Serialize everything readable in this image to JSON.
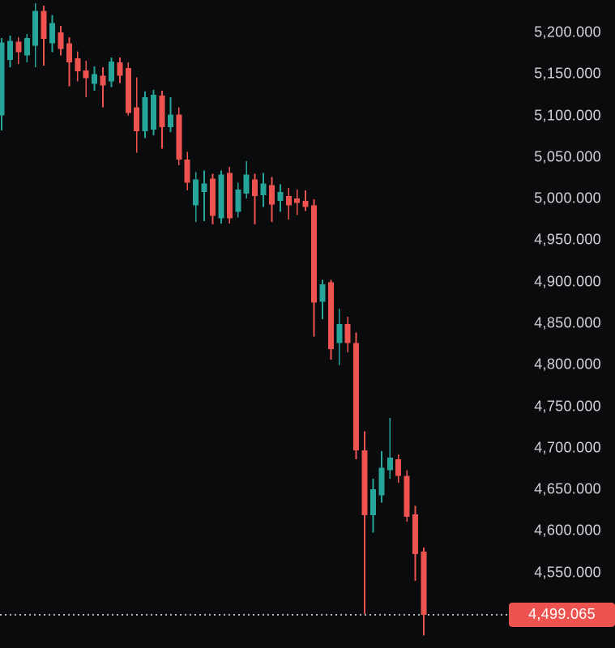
{
  "colors": {
    "background": "#0a0b0d",
    "up": "#26a69a",
    "down": "#ef5350",
    "axis_text": "#d2d4d9",
    "dotted_line": "#b8bac1",
    "price_label_bg": "#ef5350",
    "price_label_text": "#ffffff"
  },
  "chart_data": {
    "type": "candlestick",
    "title": "",
    "legend": "none",
    "grid": "off",
    "price_axis": {
      "side": "right",
      "ylim": [
        4459,
        5239
      ],
      "labels": [
        {
          "text": "5,200.000",
          "price": 5200
        },
        {
          "text": "5,150.000",
          "price": 5150
        },
        {
          "text": "5,100.000",
          "price": 5100
        },
        {
          "text": "5,050.000",
          "price": 5050
        },
        {
          "text": "5,000.000",
          "price": 5000
        },
        {
          "text": "4,950.000",
          "price": 4950
        },
        {
          "text": "4,900.000",
          "price": 4900
        },
        {
          "text": "4,850.000",
          "price": 4850
        },
        {
          "text": "4,800.000",
          "price": 4800
        },
        {
          "text": "4,750.000",
          "price": 4750
        },
        {
          "text": "4,700.000",
          "price": 4700
        },
        {
          "text": "4,650.000",
          "price": 4650
        },
        {
          "text": "4,600.000",
          "price": 4600
        },
        {
          "text": "4,550.000",
          "price": 4550
        }
      ]
    },
    "current_price": {
      "text": "4,499.065",
      "price": 4499.065
    },
    "candles_format": [
      "open",
      "high",
      "low",
      "close"
    ],
    "candles": [
      [
        5100,
        5193,
        5082,
        5188
      ],
      [
        5167,
        5196,
        5158,
        5190
      ],
      [
        5189,
        5194,
        5162,
        5176
      ],
      [
        5172,
        5198,
        5164,
        5193
      ],
      [
        5184,
        5235,
        5158,
        5226
      ],
      [
        5226,
        5232,
        5160,
        5192
      ],
      [
        5187,
        5221,
        5176,
        5211
      ],
      [
        5200,
        5208,
        5172,
        5180
      ],
      [
        5187,
        5194,
        5135,
        5164
      ],
      [
        5169,
        5177,
        5141,
        5153
      ],
      [
        5154,
        5166,
        5122,
        5145
      ],
      [
        5138,
        5159,
        5130,
        5150
      ],
      [
        5148,
        5158,
        5110,
        5136
      ],
      [
        5141,
        5170,
        5134,
        5165
      ],
      [
        5164,
        5170,
        5139,
        5148
      ],
      [
        5157,
        5164,
        5100,
        5103
      ],
      [
        5110,
        5146,
        5055,
        5081
      ],
      [
        5081,
        5129,
        5073,
        5122
      ],
      [
        5083,
        5131,
        5076,
        5125
      ],
      [
        5124,
        5130,
        5060,
        5086
      ],
      [
        5086,
        5122,
        5080,
        5101
      ],
      [
        5101,
        5110,
        5040,
        5047
      ],
      [
        5047,
        5056,
        5010,
        5019
      ],
      [
        4992,
        5032,
        4972,
        5023
      ],
      [
        5008,
        5034,
        4973,
        5018
      ],
      [
        5024,
        5030,
        4969,
        4979
      ],
      [
        4976,
        5034,
        4970,
        5029
      ],
      [
        5031,
        5038,
        4970,
        4976
      ],
      [
        4984,
        5019,
        4977,
        5011
      ],
      [
        5006,
        5045,
        5000,
        5029
      ],
      [
        5023,
        5030,
        4969,
        5003
      ],
      [
        5004,
        5031,
        4990,
        5018
      ],
      [
        5016,
        5026,
        4972,
        4993
      ],
      [
        4997,
        5017,
        4984,
        5008
      ],
      [
        5003,
        5013,
        4975,
        4992
      ],
      [
        5000,
        5011,
        4980,
        4995
      ],
      [
        4997,
        5010,
        4985,
        4990
      ],
      [
        4992,
        4999,
        4834,
        4875
      ],
      [
        4876,
        4902,
        4855,
        4897
      ],
      [
        4899,
        4902,
        4806,
        4819
      ],
      [
        4826,
        4867,
        4800,
        4849
      ],
      [
        4849,
        4858,
        4815,
        4826
      ],
      [
        4826,
        4839,
        4686,
        4697
      ],
      [
        4697,
        4720,
        4500,
        4619
      ],
      [
        4619,
        4663,
        4598,
        4650
      ],
      [
        4643,
        4696,
        4634,
        4676
      ],
      [
        4673,
        4736,
        4663,
        4688
      ],
      [
        4686,
        4692,
        4658,
        4666
      ],
      [
        4666,
        4673,
        4611,
        4617
      ],
      [
        4620,
        4630,
        4540,
        4572
      ],
      [
        4575,
        4580,
        4474,
        4499.065
      ]
    ]
  }
}
